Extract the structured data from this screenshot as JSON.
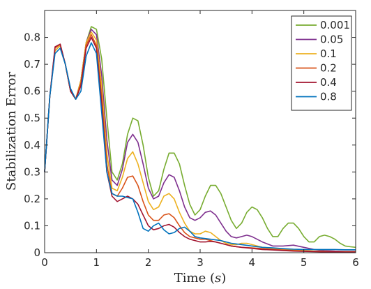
{
  "chart_data": {
    "type": "line",
    "title": "",
    "xlabel": "Time (s)",
    "ylabel": "Stabilization Error",
    "xlim": [
      0,
      6
    ],
    "ylim": [
      0,
      0.9
    ],
    "xticks": [
      "0",
      "1",
      "2",
      "3",
      "4",
      "5",
      "6"
    ],
    "yticks": [
      "0",
      "0.1",
      "0.2",
      "0.3",
      "0.4",
      "0.5",
      "0.6",
      "0.7",
      "0.8"
    ],
    "grid": false,
    "legend_position": "top-right",
    "series": [
      {
        "name": "0.001",
        "color": "#77AC30",
        "x": [
          0,
          0.1,
          0.2,
          0.3,
          0.4,
          0.5,
          0.6,
          0.7,
          0.8,
          0.9,
          1.0,
          1.1,
          1.2,
          1.3,
          1.4,
          1.5,
          1.6,
          1.7,
          1.8,
          1.9,
          2.0,
          2.1,
          2.2,
          2.3,
          2.4,
          2.5,
          2.6,
          2.7,
          2.8,
          2.9,
          3.0,
          3.1,
          3.2,
          3.3,
          3.4,
          3.5,
          3.6,
          3.7,
          3.8,
          3.9,
          4.0,
          4.1,
          4.2,
          4.3,
          4.4,
          4.5,
          4.6,
          4.7,
          4.8,
          4.9,
          5.0,
          5.1,
          5.2,
          5.3,
          5.4,
          5.5,
          5.6,
          5.7,
          5.8,
          5.9,
          6.0
        ],
        "y": [
          0.3,
          0.58,
          0.75,
          0.77,
          0.7,
          0.6,
          0.57,
          0.64,
          0.78,
          0.84,
          0.83,
          0.72,
          0.5,
          0.3,
          0.27,
          0.33,
          0.44,
          0.5,
          0.49,
          0.4,
          0.28,
          0.21,
          0.23,
          0.31,
          0.37,
          0.37,
          0.33,
          0.25,
          0.18,
          0.14,
          0.16,
          0.21,
          0.25,
          0.25,
          0.22,
          0.17,
          0.12,
          0.09,
          0.11,
          0.15,
          0.17,
          0.16,
          0.13,
          0.09,
          0.06,
          0.06,
          0.09,
          0.11,
          0.11,
          0.09,
          0.06,
          0.04,
          0.04,
          0.06,
          0.065,
          0.06,
          0.05,
          0.035,
          0.025,
          0.022,
          0.02
        ]
      },
      {
        "name": "0.05",
        "color": "#7E2F8E",
        "x": [
          0,
          0.1,
          0.2,
          0.3,
          0.4,
          0.5,
          0.6,
          0.7,
          0.8,
          0.9,
          1.0,
          1.1,
          1.2,
          1.3,
          1.4,
          1.5,
          1.6,
          1.7,
          1.8,
          1.9,
          2.0,
          2.1,
          2.2,
          2.3,
          2.4,
          2.5,
          2.6,
          2.7,
          2.8,
          2.9,
          3.0,
          3.1,
          3.2,
          3.3,
          3.4,
          3.5,
          3.6,
          3.7,
          3.8,
          3.9,
          4.0,
          4.2,
          4.4,
          4.6,
          4.8,
          5.0,
          5.2,
          5.4,
          5.6,
          5.8,
          6.0
        ],
        "y": [
          0.3,
          0.58,
          0.75,
          0.77,
          0.7,
          0.6,
          0.57,
          0.64,
          0.78,
          0.83,
          0.81,
          0.66,
          0.42,
          0.27,
          0.25,
          0.31,
          0.41,
          0.44,
          0.41,
          0.33,
          0.24,
          0.2,
          0.21,
          0.26,
          0.29,
          0.28,
          0.23,
          0.17,
          0.13,
          0.12,
          0.13,
          0.15,
          0.155,
          0.14,
          0.11,
          0.08,
          0.06,
          0.055,
          0.06,
          0.065,
          0.06,
          0.04,
          0.025,
          0.025,
          0.028,
          0.02,
          0.012,
          0.008,
          0.006,
          0.005,
          0.005
        ]
      },
      {
        "name": "0.1",
        "color": "#EDB120",
        "x": [
          0,
          0.1,
          0.2,
          0.3,
          0.4,
          0.5,
          0.6,
          0.7,
          0.8,
          0.9,
          1.0,
          1.1,
          1.2,
          1.3,
          1.4,
          1.5,
          1.6,
          1.7,
          1.8,
          1.9,
          2.0,
          2.1,
          2.2,
          2.3,
          2.4,
          2.5,
          2.6,
          2.7,
          2.8,
          2.9,
          3.0,
          3.1,
          3.2,
          3.3,
          3.4,
          3.5,
          3.6,
          3.7,
          3.8,
          3.9,
          4.0,
          4.2,
          4.4,
          4.6,
          4.8,
          5.0,
          5.2,
          5.4,
          5.6,
          5.8,
          6.0
        ],
        "y": [
          0.3,
          0.58,
          0.75,
          0.77,
          0.7,
          0.6,
          0.57,
          0.64,
          0.78,
          0.82,
          0.79,
          0.62,
          0.37,
          0.24,
          0.23,
          0.28,
          0.35,
          0.375,
          0.33,
          0.26,
          0.19,
          0.16,
          0.17,
          0.21,
          0.22,
          0.2,
          0.15,
          0.11,
          0.08,
          0.07,
          0.07,
          0.08,
          0.075,
          0.06,
          0.045,
          0.035,
          0.03,
          0.03,
          0.035,
          0.035,
          0.03,
          0.02,
          0.015,
          0.012,
          0.01,
          0.008,
          0.006,
          0.005,
          0.004,
          0.004,
          0.004
        ]
      },
      {
        "name": "0.2",
        "color": "#D95319",
        "x": [
          0,
          0.1,
          0.2,
          0.3,
          0.4,
          0.5,
          0.6,
          0.7,
          0.8,
          0.9,
          1.0,
          1.1,
          1.2,
          1.3,
          1.4,
          1.5,
          1.6,
          1.7,
          1.8,
          1.9,
          2.0,
          2.1,
          2.2,
          2.3,
          2.4,
          2.5,
          2.6,
          2.7,
          2.8,
          2.9,
          3.0,
          3.1,
          3.2,
          3.3,
          3.4,
          3.5,
          3.6,
          3.8,
          4.0,
          4.2,
          4.4,
          4.6,
          4.8,
          5.0,
          5.2,
          5.4,
          5.6,
          5.8,
          6.0
        ],
        "y": [
          0.3,
          0.58,
          0.76,
          0.775,
          0.7,
          0.6,
          0.57,
          0.63,
          0.77,
          0.81,
          0.77,
          0.58,
          0.33,
          0.22,
          0.21,
          0.24,
          0.28,
          0.285,
          0.25,
          0.19,
          0.14,
          0.12,
          0.12,
          0.14,
          0.145,
          0.13,
          0.1,
          0.075,
          0.06,
          0.055,
          0.05,
          0.05,
          0.045,
          0.04,
          0.035,
          0.03,
          0.025,
          0.02,
          0.018,
          0.015,
          0.012,
          0.01,
          0.008,
          0.006,
          0.005,
          0.004,
          0.004,
          0.003,
          0.003
        ]
      },
      {
        "name": "0.4",
        "color": "#A2142F",
        "x": [
          0,
          0.1,
          0.2,
          0.3,
          0.4,
          0.5,
          0.6,
          0.7,
          0.8,
          0.9,
          1.0,
          1.1,
          1.2,
          1.3,
          1.4,
          1.5,
          1.6,
          1.7,
          1.8,
          1.9,
          2.0,
          2.1,
          2.2,
          2.3,
          2.4,
          2.5,
          2.6,
          2.7,
          2.8,
          2.9,
          3.0,
          3.1,
          3.2,
          3.3,
          3.4,
          3.6,
          3.8,
          4.0,
          4.2,
          4.4,
          4.6,
          4.8,
          5.0,
          5.2,
          5.4,
          5.6,
          5.8,
          6.0
        ],
        "y": [
          0.3,
          0.58,
          0.765,
          0.775,
          0.7,
          0.6,
          0.57,
          0.62,
          0.76,
          0.8,
          0.76,
          0.55,
          0.3,
          0.21,
          0.19,
          0.2,
          0.21,
          0.2,
          0.18,
          0.14,
          0.1,
          0.085,
          0.09,
          0.1,
          0.105,
          0.095,
          0.075,
          0.06,
          0.05,
          0.045,
          0.04,
          0.04,
          0.042,
          0.04,
          0.035,
          0.025,
          0.02,
          0.016,
          0.012,
          0.01,
          0.008,
          0.006,
          0.005,
          0.004,
          0.003,
          0.003,
          0.002,
          0.002
        ]
      },
      {
        "name": "0.8",
        "color": "#0072BD",
        "x": [
          0,
          0.1,
          0.2,
          0.3,
          0.4,
          0.5,
          0.6,
          0.7,
          0.8,
          0.9,
          1.0,
          1.1,
          1.2,
          1.3,
          1.4,
          1.5,
          1.6,
          1.7,
          1.8,
          1.9,
          2.0,
          2.1,
          2.2,
          2.3,
          2.4,
          2.5,
          2.6,
          2.7,
          2.8,
          2.9,
          3.0,
          3.2,
          3.4,
          3.6,
          3.8,
          4.0,
          4.2,
          4.4,
          4.6,
          4.8,
          5.0,
          5.2,
          5.4,
          5.6,
          5.8,
          6.0
        ],
        "y": [
          0.3,
          0.58,
          0.74,
          0.76,
          0.7,
          0.61,
          0.57,
          0.6,
          0.73,
          0.78,
          0.74,
          0.52,
          0.3,
          0.22,
          0.21,
          0.21,
          0.205,
          0.2,
          0.15,
          0.09,
          0.08,
          0.1,
          0.11,
          0.085,
          0.07,
          0.075,
          0.09,
          0.095,
          0.08,
          0.06,
          0.055,
          0.05,
          0.045,
          0.035,
          0.03,
          0.025,
          0.02,
          0.018,
          0.015,
          0.013,
          0.012,
          0.012,
          0.012,
          0.012,
          0.011,
          0.011
        ]
      }
    ]
  }
}
